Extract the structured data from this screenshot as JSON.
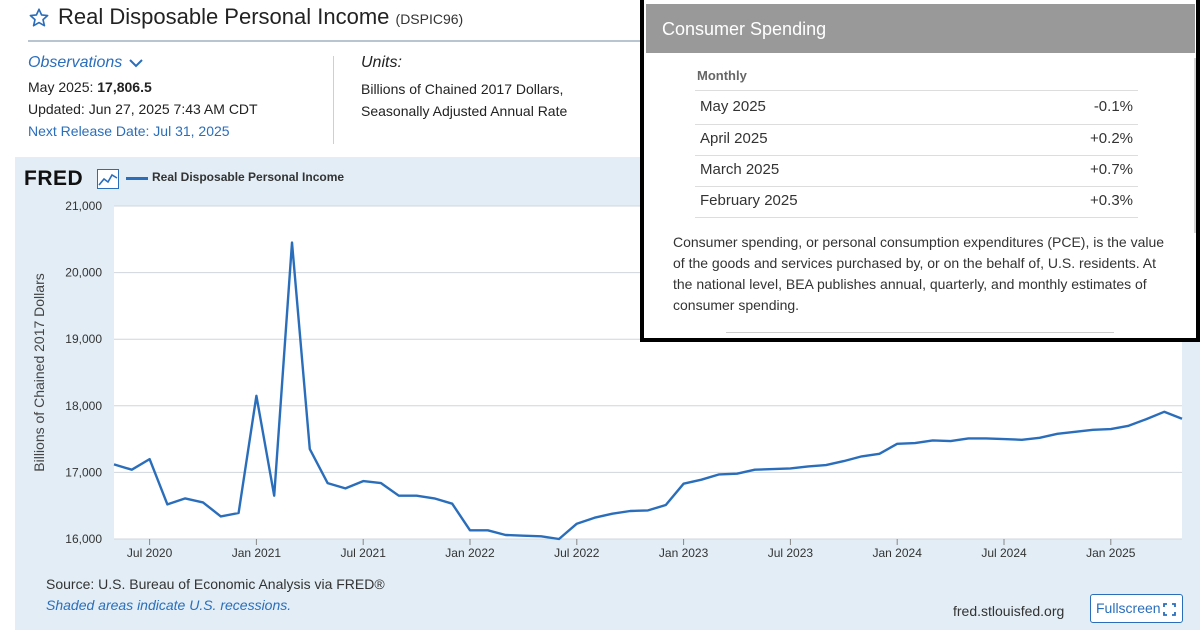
{
  "header": {
    "title": "Real Disposable Personal Income",
    "series_id": "(DSPIC96)",
    "observations_label": "Observations",
    "obs_period": "May 2025:",
    "obs_value": "17,806.5",
    "updated": "Updated: Jun 27, 2025 7:43 AM CDT",
    "next_release": "Next Release Date: Jul 31, 2025",
    "units_label": "Units:",
    "units_text": "Billions of Chained 2017 Dollars, Seasonally Adjusted Annual Rate"
  },
  "chart_meta": {
    "logo": "FRED",
    "legend_label": "Real Disposable Personal Income",
    "source": "Source: U.S. Bureau of Economic Analysis via FRED®",
    "shaded_note": "Shaded areas indicate U.S. recessions.",
    "site": "fred.stlouisfed.org",
    "fullscreen_label": "Fullscreen"
  },
  "chart_data": {
    "type": "line",
    "title": "Real Disposable Personal Income",
    "xlabel": "",
    "ylabel": "Billions of Chained 2017 Dollars",
    "ylim": [
      16000,
      21000
    ],
    "yticks": [
      16000,
      17000,
      18000,
      19000,
      20000,
      21000
    ],
    "ytick_labels": [
      "16,000",
      "17,000",
      "18,000",
      "19,000",
      "20,000",
      "21,000"
    ],
    "start": "2020-05",
    "end": "2025-05",
    "xticks": [
      {
        "label": "Jul 2020",
        "index": 2
      },
      {
        "label": "Jan 2021",
        "index": 8
      },
      {
        "label": "Jul 2021",
        "index": 14
      },
      {
        "label": "Jan 2022",
        "index": 20
      },
      {
        "label": "Jul 2022",
        "index": 26
      },
      {
        "label": "Jan 2023",
        "index": 32
      },
      {
        "label": "Jul 2023",
        "index": 38
      },
      {
        "label": "Jan 2024",
        "index": 44
      },
      {
        "label": "Jul 2024",
        "index": 50
      },
      {
        "label": "Jan 2025",
        "index": 56
      }
    ],
    "series": [
      {
        "name": "Real Disposable Personal Income",
        "color": "#2a6ebb",
        "values": [
          17120,
          17040,
          17200,
          16520,
          16610,
          16550,
          16340,
          16390,
          18150,
          16650,
          20450,
          17350,
          16840,
          16760,
          16870,
          16840,
          16650,
          16650,
          16610,
          16530,
          16130,
          16130,
          16060,
          16050,
          16040,
          16000,
          16230,
          16320,
          16380,
          16420,
          16430,
          16510,
          16830,
          16890,
          16970,
          16980,
          17040,
          17050,
          17060,
          17090,
          17110,
          17170,
          17240,
          17280,
          17430,
          17440,
          17480,
          17470,
          17510,
          17510,
          17500,
          17490,
          17520,
          17580,
          17610,
          17640,
          17650,
          17700,
          17800,
          17910,
          17806.5
        ]
      }
    ]
  },
  "consumer_spending": {
    "title": "Consumer Spending",
    "period_label": "Monthly",
    "rows": [
      {
        "month": "May 2025",
        "value": "-0.1%"
      },
      {
        "month": "April 2025",
        "value": "+0.2%"
      },
      {
        "month": "March 2025",
        "value": "+0.7%"
      },
      {
        "month": "February 2025",
        "value": "+0.3%"
      }
    ],
    "description": "Consumer spending, or personal consumption expenditures (PCE), is the value of the goods and services purchased by, or on the behalf of, U.S. residents. At the national level, BEA publishes annual, quarterly, and monthly estimates of consumer spending."
  }
}
